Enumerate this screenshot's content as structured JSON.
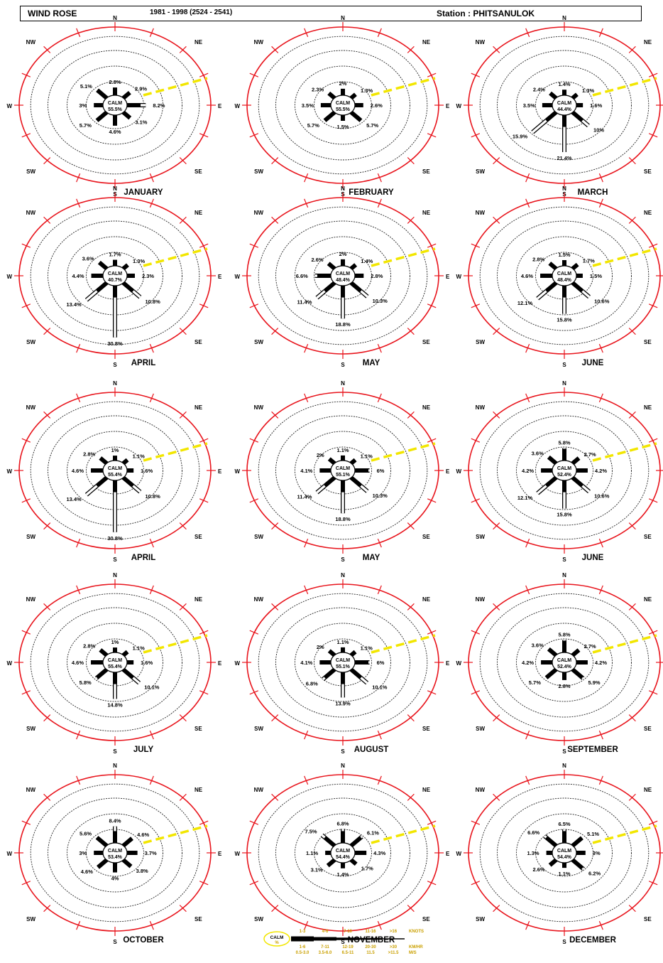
{
  "header": {
    "title": "WIND ROSE",
    "period": "1981 - 1998 (2524 - 2541)",
    "station": "Station : PHITSANULOK"
  },
  "colors": {
    "outer_ring": "#e8141c",
    "inner_ring": "#222222",
    "bar": "#000000",
    "calm_arrow": "#f2e600"
  },
  "directions": [
    "N",
    "NE",
    "E",
    "SE",
    "S",
    "SW",
    "W",
    "NW"
  ],
  "roses": [
    {
      "month": "JANUARY",
      "calm": "CALM 55.5%",
      "values": [
        "2.8%",
        "2.9%",
        "8.2%",
        "3.1%",
        "4.6%",
        "5.7%",
        "3%",
        "5.1%"
      ],
      "row": 0,
      "col": 0
    },
    {
      "month": "FEBRUARY",
      "calm": "CALM 55.5%",
      "values": [
        "2%",
        "1.3%",
        "2.6%",
        "5.7%",
        "1.5%",
        "5.7%",
        "3.5%",
        "2.3%"
      ],
      "row": 0,
      "col": 1
    },
    {
      "month": "MARCH",
      "calm": "CALM 44.4%",
      "values": [
        "1.4%",
        "1.3%",
        "1.6%",
        "10%",
        "21.4%",
        "15.9%",
        "3.5%",
        "2.4%"
      ],
      "row": 0,
      "col": 2
    },
    {
      "month": "APRIL",
      "calm": "CALM 40.7%",
      "values": [
        "1.7%",
        "1.3%",
        "2.3%",
        "10.8%",
        "30.8%",
        "13.4%",
        "4.4%",
        "3.6%"
      ],
      "row": 1,
      "col": 0
    },
    {
      "month": "MAY",
      "calm": "CALM 48.4%",
      "values": [
        "2%",
        "1.4%",
        "2.8%",
        "10.3%",
        "18.8%",
        "11.4%",
        "6.6%",
        "2.6%"
      ],
      "row": 1,
      "col": 1
    },
    {
      "month": "JUNE",
      "calm": "CALM 48.4%",
      "values": [
        "1.5%",
        "1.7%",
        "1.5%",
        "10.6%",
        "15.8%",
        "12.1%",
        "4.6%",
        "2.8%"
      ],
      "row": 1,
      "col": 2
    },
    {
      "month": "APRIL",
      "calm": "CALM 55.4%",
      "values": [
        "1%",
        "1.1%",
        "1.6%",
        "10.8%",
        "30.8%",
        "13.4%",
        "4.6%",
        "2.8%"
      ],
      "row": 2,
      "col": 0
    },
    {
      "month": "MAY",
      "calm": "CALM 55.1%",
      "values": [
        "1.1%",
        "1.1%",
        "6%",
        "10.3%",
        "18.8%",
        "11.4%",
        "4.1%",
        "2%"
      ],
      "row": 2,
      "col": 1
    },
    {
      "month": "JUNE",
      "calm": "CALM 52.4%",
      "values": [
        "5.8%",
        "2.7%",
        "4.2%",
        "10.6%",
        "15.8%",
        "12.1%",
        "4.2%",
        "3.6%"
      ],
      "row": 2,
      "col": 2
    },
    {
      "month": "JULY",
      "calm": "CALM 55.4%",
      "values": [
        "1%",
        "1.1%",
        "1.6%",
        "10.1%",
        "14.8%",
        "5.8%",
        "4.6%",
        "2.8%"
      ],
      "row": 3,
      "col": 0
    },
    {
      "month": "AUGUST",
      "calm": "CALM 55.1%",
      "values": [
        "1.1%",
        "1.1%",
        "6%",
        "10.1%",
        "13.9%",
        "6.8%",
        "4.1%",
        "2%"
      ],
      "row": 3,
      "col": 1
    },
    {
      "month": "SEPTEMBER",
      "calm": "CALM 52.4%",
      "values": [
        "5.8%",
        "2.7%",
        "4.2%",
        "5.9%",
        "2.8%",
        "5.7%",
        "4.2%",
        "3.6%"
      ],
      "row": 3,
      "col": 2
    },
    {
      "month": "OCTOBER",
      "calm": "CALM 53.4%",
      "values": [
        "8.4%",
        "4.6%",
        "3.7%",
        "3.8%",
        "4%",
        "4.6%",
        "3%",
        "5.6%"
      ],
      "row": 4,
      "col": 0
    },
    {
      "month": "NOVEMBER",
      "calm": "CALM 54.4%",
      "values": [
        "6.8%",
        "6.1%",
        "4.3%",
        "1.7%",
        "1.4%",
        "3.1%",
        "1.1%",
        "7.5%"
      ],
      "row": 4,
      "col": 1
    },
    {
      "month": "DECEMBER",
      "calm": "CALM 54.4%",
      "values": [
        "6.5%",
        "5.1%",
        "3%",
        "6.2%",
        "1.1%",
        "2.6%",
        "1.3%",
        "6.6%"
      ],
      "row": 4,
      "col": 2
    }
  ],
  "legend": {
    "calm_label": "CALM",
    "calm_sub": "%",
    "units": "KNOTS",
    "row1": [
      "1-3",
      "4-6",
      "7-10",
      "11-16",
      ">16"
    ],
    "row2": [
      "1-6",
      "7-11",
      "12-19",
      "20-30",
      ">30"
    ],
    "row3": [
      "0.5-3.0",
      "3.5-6.0",
      "6.5-11",
      "11.5",
      ">11.5"
    ],
    "row1_unit": "KNOTS",
    "row2_unit": "KM/HR",
    "row3_unit": "M/S"
  }
}
